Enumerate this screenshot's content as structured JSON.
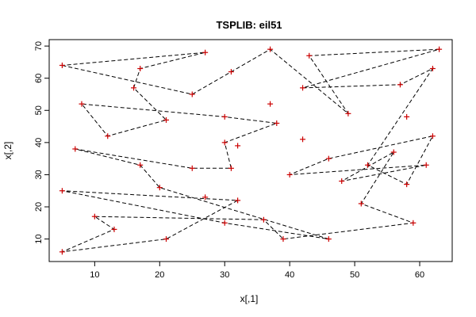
{
  "chart_data": {
    "type": "line",
    "title": "TSPLIB: eil51",
    "xlabel": "x[,1]",
    "ylabel": "x[,2]",
    "xlim": [
      3,
      65
    ],
    "ylim": [
      3,
      72
    ],
    "x_ticks": [
      10,
      20,
      30,
      40,
      50,
      60
    ],
    "y_ticks": [
      10,
      20,
      30,
      40,
      50,
      60,
      70
    ],
    "grid": false,
    "line_style": "dashed",
    "line_color": "#000000",
    "marker": "plus",
    "marker_color": "#cc0000",
    "tour": [
      [
        5,
        64
      ],
      [
        25,
        55
      ],
      [
        31,
        62
      ],
      [
        37,
        69
      ],
      [
        49,
        49
      ],
      [
        43,
        67
      ],
      [
        63,
        69
      ],
      [
        42,
        57
      ],
      [
        57,
        58
      ],
      [
        62,
        63
      ],
      [
        52,
        33
      ],
      [
        58,
        27
      ],
      [
        62,
        42
      ],
      [
        46,
        35
      ],
      [
        40,
        30
      ],
      [
        61,
        33
      ],
      [
        48,
        28
      ],
      [
        56,
        37
      ],
      [
        51,
        21
      ],
      [
        59,
        15
      ],
      [
        39,
        10
      ],
      [
        36,
        16
      ],
      [
        10,
        17
      ],
      [
        13,
        13
      ],
      [
        5,
        6
      ],
      [
        21,
        10
      ],
      [
        32,
        22
      ],
      [
        5,
        25
      ],
      [
        30,
        15
      ],
      [
        46,
        10
      ],
      [
        20,
        26
      ],
      [
        17,
        33
      ],
      [
        7,
        38
      ],
      [
        25,
        32
      ],
      [
        31,
        32
      ],
      [
        30,
        40
      ],
      [
        38,
        46
      ],
      [
        30,
        48
      ],
      [
        8,
        52
      ],
      [
        12,
        42
      ],
      [
        21,
        47
      ],
      [
        16,
        57
      ],
      [
        17,
        63
      ],
      [
        27,
        68
      ],
      [
        5,
        64
      ]
    ],
    "extra_points": [
      [
        20,
        26
      ],
      [
        27,
        23
      ],
      [
        42,
        41
      ],
      [
        58,
        48
      ],
      [
        37,
        52
      ],
      [
        32,
        39
      ]
    ]
  }
}
